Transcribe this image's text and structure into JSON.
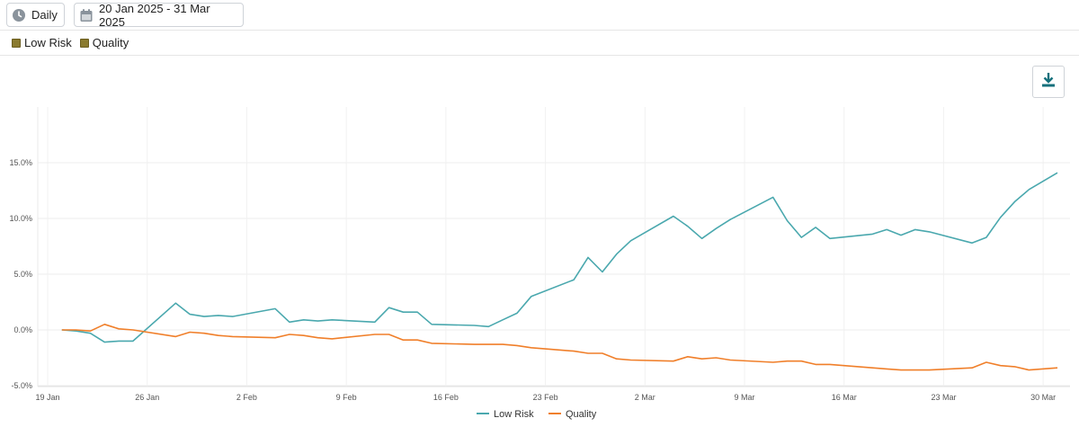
{
  "toolbar": {
    "frequency_label": "Daily",
    "date_range_label": "20 Jan 2025 - 31 Mar 2025",
    "icons": {
      "frequency": "clock-icon",
      "date_range": "calendar-icon",
      "download": "download-icon"
    }
  },
  "series_toggles": [
    {
      "label": "Low Risk",
      "color": "#8a7a2e"
    },
    {
      "label": "Quality",
      "color": "#8a7a2e"
    }
  ],
  "chart_data": {
    "type": "line",
    "x_ticks": [
      "19 Jan",
      "26 Jan",
      "2 Feb",
      "9 Feb",
      "16 Feb",
      "23 Feb",
      "2 Mar",
      "9 Mar",
      "16 Mar",
      "23 Mar",
      "30 Mar"
    ],
    "y_ticks": [
      "-5.0%",
      "0.0%",
      "5.0%",
      "10.0%",
      "15.0%"
    ],
    "ylim": [
      -5,
      20
    ],
    "xlim": [
      "2025-01-19",
      "2025-03-31"
    ],
    "grid": true,
    "legend_position": "bottom",
    "series": [
      {
        "name": "Low Risk",
        "color": "#4aa8ae",
        "points": [
          [
            "2025-01-20",
            0.0
          ],
          [
            "2025-01-21",
            -0.1
          ],
          [
            "2025-01-22",
            -0.3
          ],
          [
            "2025-01-23",
            -1.1
          ],
          [
            "2025-01-24",
            -1.0
          ],
          [
            "2025-01-25",
            -1.0
          ],
          [
            "2025-01-28",
            2.4
          ],
          [
            "2025-01-29",
            1.4
          ],
          [
            "2025-01-30",
            1.2
          ],
          [
            "2025-01-31",
            1.3
          ],
          [
            "2025-02-01",
            1.2
          ],
          [
            "2025-02-04",
            1.9
          ],
          [
            "2025-02-05",
            0.7
          ],
          [
            "2025-02-06",
            0.9
          ],
          [
            "2025-02-07",
            0.8
          ],
          [
            "2025-02-08",
            0.9
          ],
          [
            "2025-02-11",
            0.7
          ],
          [
            "2025-02-12",
            2.0
          ],
          [
            "2025-02-13",
            1.6
          ],
          [
            "2025-02-14",
            1.6
          ],
          [
            "2025-02-15",
            0.5
          ],
          [
            "2025-02-18",
            0.4
          ],
          [
            "2025-02-19",
            0.3
          ],
          [
            "2025-02-20",
            0.9
          ],
          [
            "2025-02-21",
            1.5
          ],
          [
            "2025-02-22",
            3.0
          ],
          [
            "2025-02-25",
            4.5
          ],
          [
            "2025-02-26",
            6.5
          ],
          [
            "2025-02-27",
            5.2
          ],
          [
            "2025-02-28",
            6.8
          ],
          [
            "2025-03-01",
            8.0
          ],
          [
            "2025-03-04",
            10.2
          ],
          [
            "2025-03-05",
            9.3
          ],
          [
            "2025-03-06",
            8.2
          ],
          [
            "2025-03-07",
            9.1
          ],
          [
            "2025-03-08",
            9.9
          ],
          [
            "2025-03-11",
            11.9
          ],
          [
            "2025-03-12",
            9.8
          ],
          [
            "2025-03-13",
            8.3
          ],
          [
            "2025-03-14",
            9.2
          ],
          [
            "2025-03-15",
            8.2
          ],
          [
            "2025-03-18",
            8.6
          ],
          [
            "2025-03-19",
            9.0
          ],
          [
            "2025-03-20",
            8.5
          ],
          [
            "2025-03-21",
            9.0
          ],
          [
            "2025-03-22",
            8.8
          ],
          [
            "2025-03-25",
            7.8
          ],
          [
            "2025-03-26",
            8.3
          ],
          [
            "2025-03-27",
            10.1
          ],
          [
            "2025-03-28",
            11.5
          ],
          [
            "2025-03-29",
            12.6
          ],
          [
            "2025-03-31",
            14.1
          ]
        ]
      },
      {
        "name": "Quality",
        "color": "#f07f2a",
        "points": [
          [
            "2025-01-20",
            0.0
          ],
          [
            "2025-01-21",
            0.0
          ],
          [
            "2025-01-22",
            -0.1
          ],
          [
            "2025-01-23",
            0.5
          ],
          [
            "2025-01-24",
            0.1
          ],
          [
            "2025-01-25",
            0.0
          ],
          [
            "2025-01-28",
            -0.6
          ],
          [
            "2025-01-29",
            -0.2
          ],
          [
            "2025-01-30",
            -0.3
          ],
          [
            "2025-01-31",
            -0.5
          ],
          [
            "2025-02-01",
            -0.6
          ],
          [
            "2025-02-04",
            -0.7
          ],
          [
            "2025-02-05",
            -0.4
          ],
          [
            "2025-02-06",
            -0.5
          ],
          [
            "2025-02-07",
            -0.7
          ],
          [
            "2025-02-08",
            -0.8
          ],
          [
            "2025-02-11",
            -0.4
          ],
          [
            "2025-02-12",
            -0.4
          ],
          [
            "2025-02-13",
            -0.9
          ],
          [
            "2025-02-14",
            -0.9
          ],
          [
            "2025-02-15",
            -1.2
          ],
          [
            "2025-02-18",
            -1.3
          ],
          [
            "2025-02-19",
            -1.3
          ],
          [
            "2025-02-20",
            -1.3
          ],
          [
            "2025-02-21",
            -1.4
          ],
          [
            "2025-02-22",
            -1.6
          ],
          [
            "2025-02-25",
            -1.9
          ],
          [
            "2025-02-26",
            -2.1
          ],
          [
            "2025-02-27",
            -2.1
          ],
          [
            "2025-02-28",
            -2.6
          ],
          [
            "2025-03-01",
            -2.7
          ],
          [
            "2025-03-04",
            -2.8
          ],
          [
            "2025-03-05",
            -2.4
          ],
          [
            "2025-03-06",
            -2.6
          ],
          [
            "2025-03-07",
            -2.5
          ],
          [
            "2025-03-08",
            -2.7
          ],
          [
            "2025-03-11",
            -2.9
          ],
          [
            "2025-03-12",
            -2.8
          ],
          [
            "2025-03-13",
            -2.8
          ],
          [
            "2025-03-14",
            -3.1
          ],
          [
            "2025-03-15",
            -3.1
          ],
          [
            "2025-03-18",
            -3.4
          ],
          [
            "2025-03-19",
            -3.5
          ],
          [
            "2025-03-20",
            -3.6
          ],
          [
            "2025-03-21",
            -3.6
          ],
          [
            "2025-03-22",
            -3.6
          ],
          [
            "2025-03-25",
            -3.4
          ],
          [
            "2025-03-26",
            -2.9
          ],
          [
            "2025-03-27",
            -3.2
          ],
          [
            "2025-03-28",
            -3.3
          ],
          [
            "2025-03-29",
            -3.6
          ],
          [
            "2025-03-31",
            -3.4
          ]
        ]
      }
    ]
  }
}
